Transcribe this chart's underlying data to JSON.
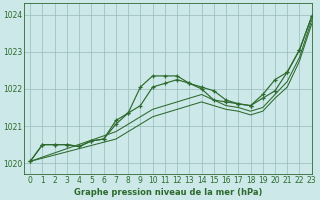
{
  "bg_color": "#cce8e8",
  "line_color": "#2d6a2d",
  "grid_color": "#99bbbb",
  "text_color": "#2d6a2d",
  "xlabel": "Graphe pression niveau de la mer (hPa)",
  "ylim": [
    1019.7,
    1024.3
  ],
  "xlim": [
    -0.5,
    23
  ],
  "yticks": [
    1020,
    1021,
    1022,
    1023,
    1024
  ],
  "xticks": [
    0,
    1,
    2,
    3,
    4,
    5,
    6,
    7,
    8,
    9,
    10,
    11,
    12,
    13,
    14,
    15,
    16,
    17,
    18,
    19,
    20,
    21,
    22,
    23
  ],
  "series": [
    {
      "x": [
        0,
        1,
        2,
        3,
        4,
        5,
        6,
        7,
        8,
        9,
        10,
        11,
        12,
        13,
        14,
        15,
        16,
        17,
        18,
        19,
        20,
        21,
        22,
        23
      ],
      "y": [
        1020.05,
        1020.5,
        1020.5,
        1020.5,
        1020.45,
        1020.6,
        1020.65,
        1021.15,
        1021.35,
        1022.05,
        1022.35,
        1022.35,
        1022.35,
        1022.15,
        1022.05,
        1021.95,
        1021.7,
        1021.6,
        1021.55,
        1021.85,
        1022.25,
        1022.45,
        1023.05,
        1023.95
      ],
      "marker": true
    },
    {
      "x": [
        0,
        1,
        2,
        3,
        4,
        5,
        6,
        7,
        8,
        9,
        10,
        11,
        12,
        13,
        14,
        15,
        16,
        17,
        18,
        19,
        20,
        21,
        22,
        23
      ],
      "y": [
        1020.05,
        1020.5,
        1020.5,
        1020.5,
        1020.45,
        1020.6,
        1020.65,
        1021.05,
        1021.35,
        1021.55,
        1022.05,
        1022.15,
        1022.25,
        1022.15,
        1022.0,
        1021.7,
        1021.65,
        1021.6,
        1021.55,
        1021.75,
        1021.95,
        1022.45,
        1023.05,
        1023.95
      ],
      "marker": true
    },
    {
      "x": [
        0,
        7,
        8,
        9,
        10,
        11,
        12,
        13,
        14,
        15,
        16,
        17,
        18,
        19,
        20,
        21,
        22,
        23
      ],
      "y": [
        1020.05,
        1020.85,
        1021.05,
        1021.25,
        1021.45,
        1021.55,
        1021.65,
        1021.75,
        1021.85,
        1021.7,
        1021.55,
        1021.5,
        1021.4,
        1021.5,
        1021.85,
        1022.2,
        1022.85,
        1023.85
      ],
      "marker": false
    },
    {
      "x": [
        0,
        7,
        8,
        9,
        10,
        11,
        12,
        13,
        14,
        15,
        16,
        17,
        18,
        19,
        20,
        21,
        22,
        23
      ],
      "y": [
        1020.05,
        1020.65,
        1020.85,
        1021.05,
        1021.25,
        1021.35,
        1021.45,
        1021.55,
        1021.65,
        1021.55,
        1021.45,
        1021.4,
        1021.3,
        1021.4,
        1021.75,
        1022.05,
        1022.75,
        1023.75
      ],
      "marker": false
    }
  ]
}
